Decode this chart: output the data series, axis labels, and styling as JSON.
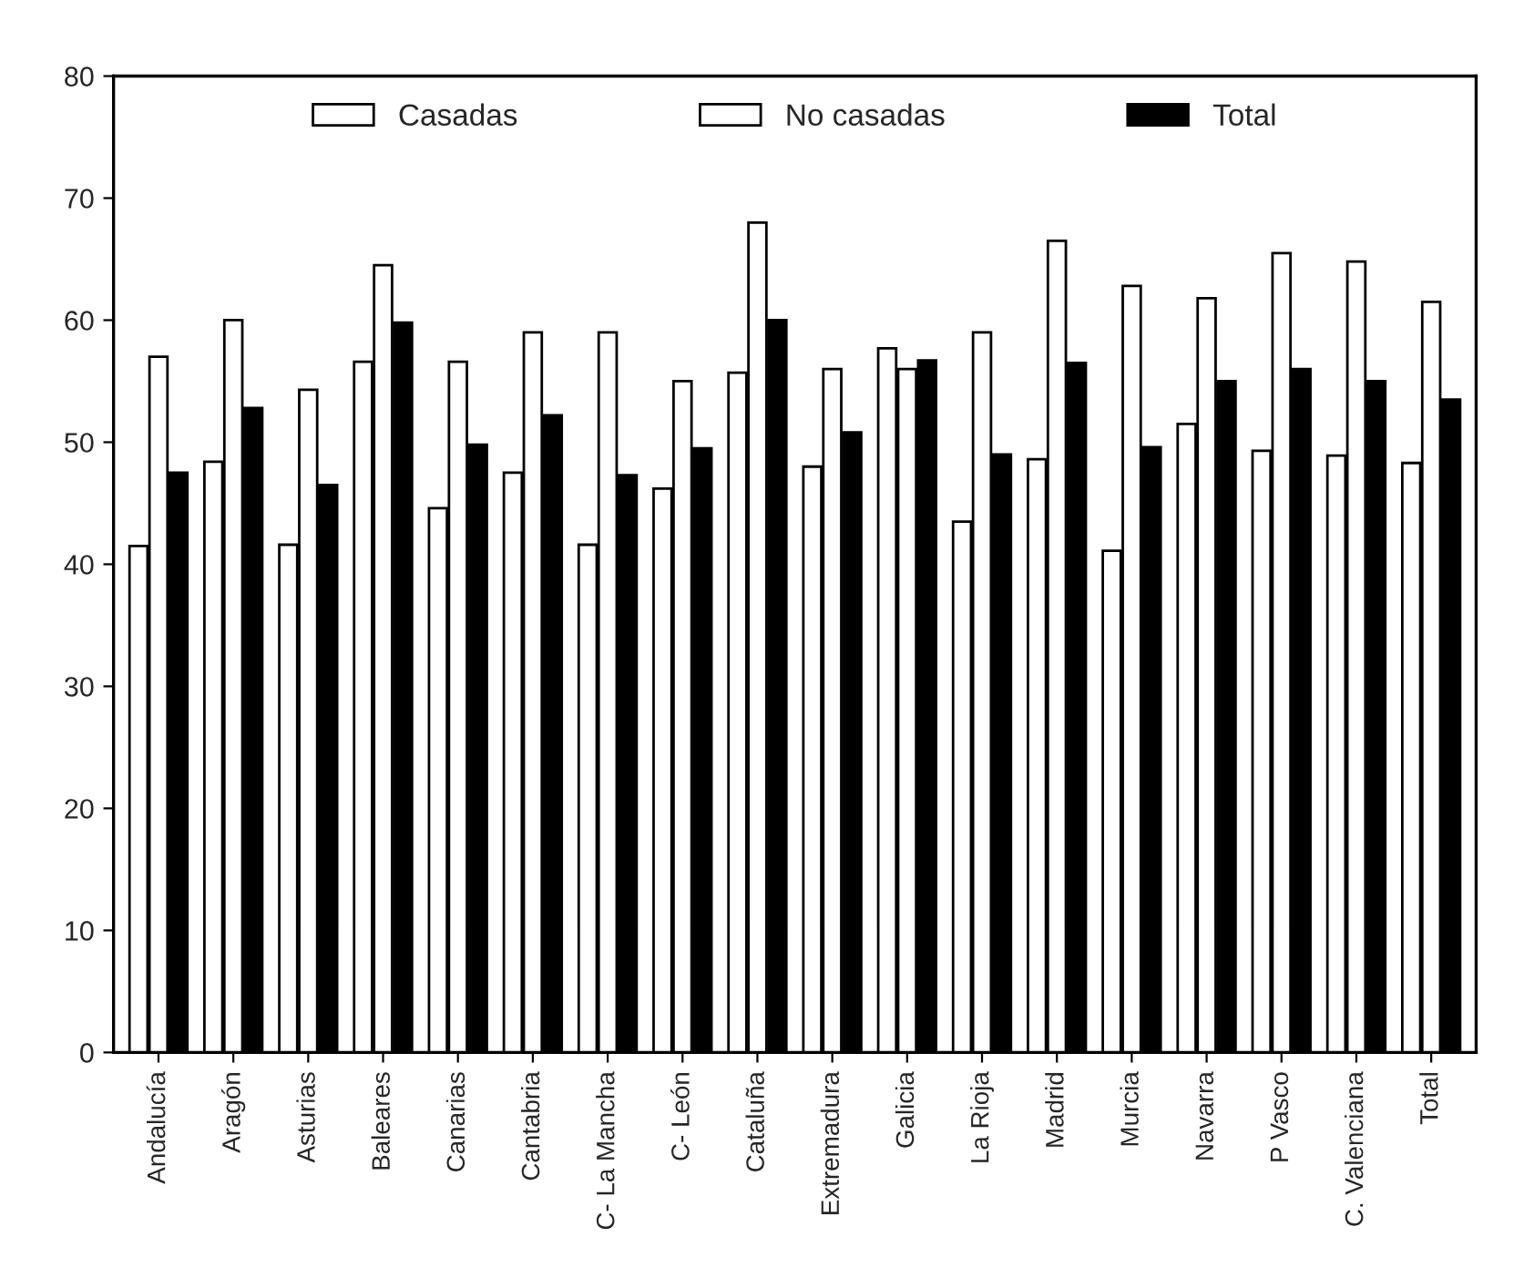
{
  "chart_data": {
    "type": "bar",
    "categories": [
      "Andalucía",
      "Aragón",
      "Asturias",
      "Baleares",
      "Canarias",
      "Cantabria",
      "C- La Mancha",
      "C- León",
      "Cataluña",
      "Extremadura",
      "Galicia",
      "La Rioja",
      "Madrid",
      "Murcia",
      "Navarra",
      "P Vasco",
      "C. Valenciana",
      "Total"
    ],
    "series": [
      {
        "name": "Casadas",
        "color": "#ffffff",
        "values": [
          41.5,
          48.4,
          41.6,
          56.6,
          44.6,
          47.5,
          41.6,
          46.2,
          55.7,
          48,
          57.7,
          43.5,
          48.6,
          41.1,
          51.5,
          49.3,
          48.9,
          48.3
        ]
      },
      {
        "name": "No casadas",
        "color": "#ffffff",
        "values": [
          57,
          60,
          54.3,
          64.5,
          56.6,
          59,
          59,
          55,
          68,
          56,
          56,
          59,
          66.5,
          62.8,
          61.8,
          65.5,
          64.8,
          61.5
        ]
      },
      {
        "name": "Total",
        "color": "#000000",
        "values": [
          47.5,
          52.8,
          46.5,
          59.8,
          49.8,
          52.2,
          47.3,
          49.5,
          60,
          50.8,
          56.7,
          49,
          56.5,
          49.6,
          55,
          56,
          55,
          53.5
        ]
      }
    ],
    "ylim": [
      0,
      80
    ],
    "yticks": [
      0,
      10,
      20,
      30,
      40,
      50,
      60,
      70,
      80
    ],
    "grid": false,
    "legend": "top"
  }
}
